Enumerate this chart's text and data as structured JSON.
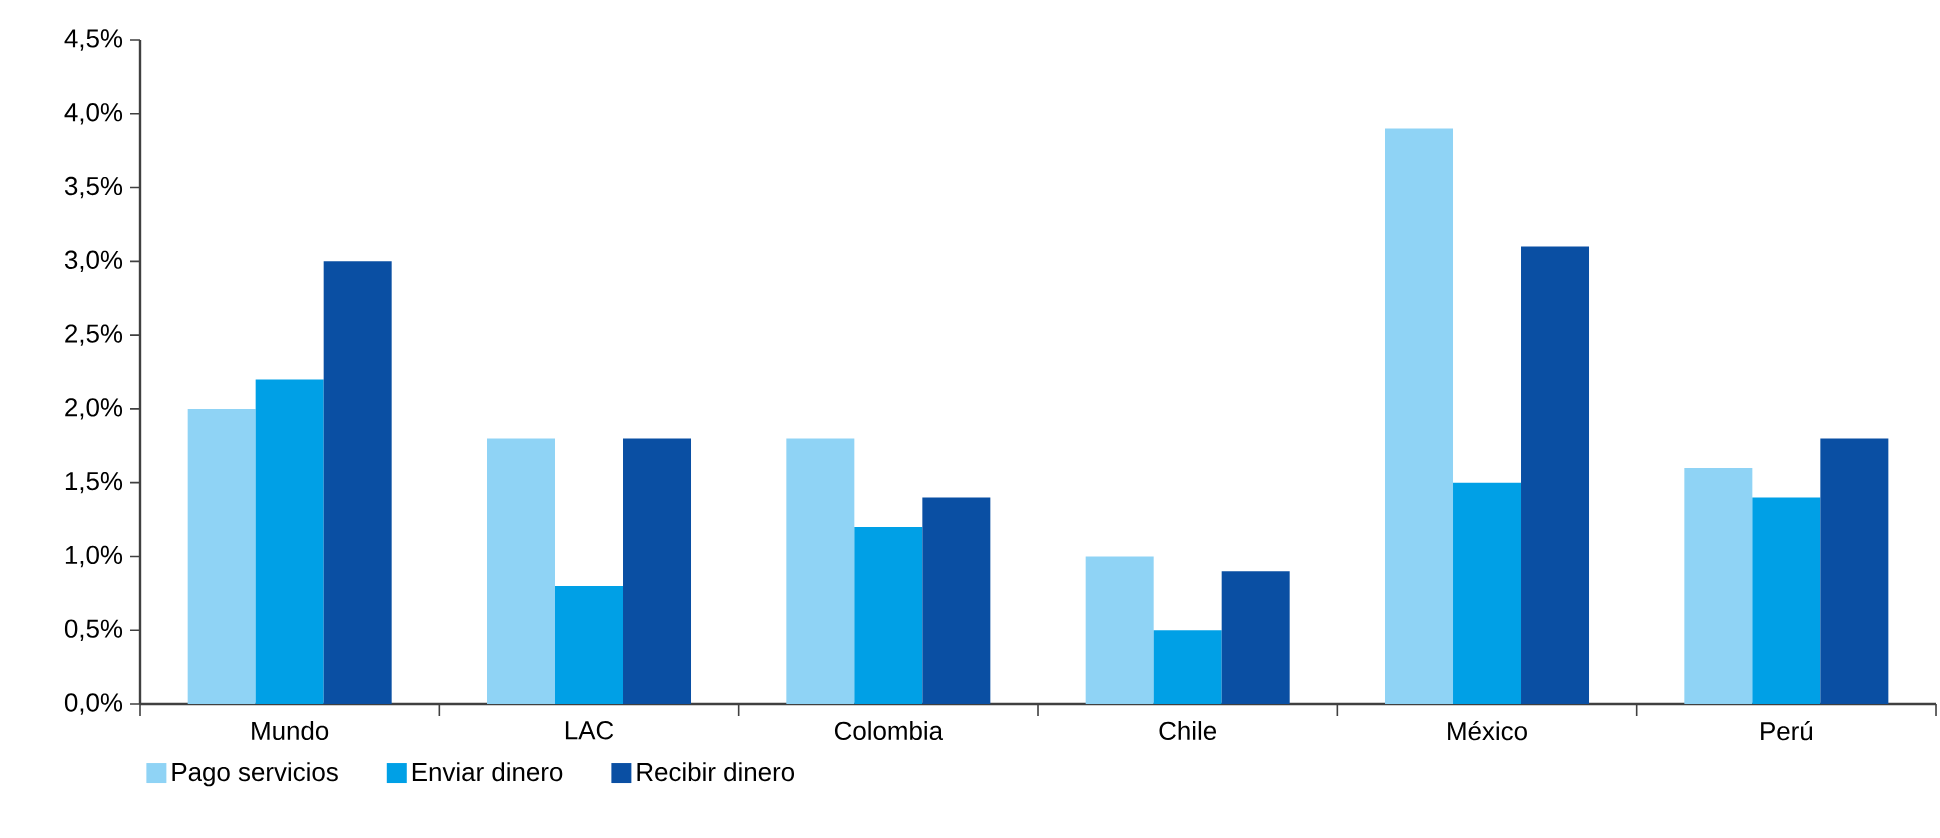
{
  "chart_data": {
    "type": "bar",
    "categories": [
      "Mundo",
      "LAC",
      "Colombia",
      "Chile",
      "México",
      "Perú"
    ],
    "series": [
      {
        "name": "Pago servicios",
        "color": "#8fd3f5",
        "values": [
          2.0,
          1.8,
          1.8,
          1.0,
          3.9,
          1.6
        ]
      },
      {
        "name": "Enviar dinero",
        "color": "#00a0e6",
        "values": [
          2.2,
          0.8,
          1.2,
          0.5,
          1.5,
          1.4
        ]
      },
      {
        "name": "Recibir dinero",
        "color": "#0a4fa3",
        "values": [
          3.0,
          1.8,
          1.4,
          0.9,
          3.1,
          1.8
        ]
      }
    ],
    "ylim": [
      0,
      4.5
    ],
    "yticks": [
      {
        "value": 0,
        "label": "0,0%"
      },
      {
        "value": 0.5,
        "label": "0,5%"
      },
      {
        "value": 1,
        "label": "1,0%"
      },
      {
        "value": 1.5,
        "label": "1,5%"
      },
      {
        "value": 2,
        "label": "2,0%"
      },
      {
        "value": 2.5,
        "label": "2,5%"
      },
      {
        "value": 3,
        "label": "3,0%"
      },
      {
        "value": 3.5,
        "label": "3,5%"
      },
      {
        "value": 4,
        "label": "4,0%"
      },
      {
        "value": 4.5,
        "label": "4,5%"
      }
    ],
    "grid": false,
    "legend": "bottom left"
  }
}
